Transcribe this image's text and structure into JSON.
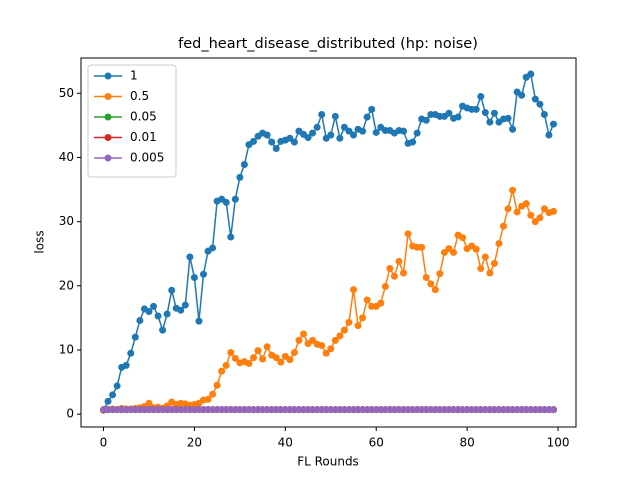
{
  "chart_data": {
    "type": "line",
    "title": "fed_heart_disease_distributed (hp: noise)",
    "x_label": "FL Rounds",
    "y_label": "loss",
    "x": [
      0,
      1,
      2,
      3,
      4,
      5,
      6,
      7,
      8,
      9,
      10,
      11,
      12,
      13,
      14,
      15,
      16,
      17,
      18,
      19,
      20,
      21,
      22,
      23,
      24,
      25,
      26,
      27,
      28,
      29,
      30,
      31,
      32,
      33,
      34,
      35,
      36,
      37,
      38,
      39,
      40,
      41,
      42,
      43,
      44,
      45,
      46,
      47,
      48,
      49,
      50,
      51,
      52,
      53,
      54,
      55,
      56,
      57,
      58,
      59,
      60,
      61,
      62,
      63,
      64,
      65,
      66,
      67,
      68,
      69,
      70,
      71,
      72,
      73,
      74,
      75,
      76,
      77,
      78,
      79,
      80,
      81,
      82,
      83,
      84,
      85,
      86,
      87,
      88,
      89,
      90,
      91,
      92,
      93,
      94,
      95,
      96,
      97,
      98,
      99
    ],
    "series": [
      {
        "name": "1",
        "color": "#1f77b4",
        "values": [
          0.6,
          2.0,
          3.0,
          4.4,
          7.3,
          7.6,
          9.5,
          12.0,
          14.6,
          16.4,
          16.0,
          16.8,
          15.3,
          13.1,
          15.6,
          19.3,
          16.5,
          16.2,
          17.0,
          24.5,
          21.3,
          14.5,
          21.8,
          25.4,
          25.9,
          33.2,
          33.5,
          33.0,
          27.6,
          33.5,
          36.9,
          38.9,
          42.0,
          42.5,
          43.3,
          43.8,
          43.5,
          42.4,
          41.4,
          42.5,
          42.7,
          43.0,
          42.4,
          44.1,
          43.6,
          43.1,
          43.8,
          44.7,
          46.7,
          43.0,
          43.5,
          46.4,
          43.0,
          44.7,
          44.1,
          43.5,
          44.4,
          44.1,
          46.3,
          47.5,
          43.9,
          44.7,
          44.2,
          44.2,
          43.8,
          44.2,
          44.1,
          42.2,
          42.4,
          43.8,
          46.0,
          45.8,
          46.7,
          46.7,
          46.4,
          46.4,
          46.9,
          46.1,
          46.3,
          48.0,
          47.7,
          47.5,
          47.5,
          49.5,
          47.0,
          45.5,
          46.9,
          45.5,
          46.0,
          46.1,
          44.4,
          50.2,
          49.7,
          52.5,
          53.0,
          49.1,
          48.3,
          46.7,
          43.5,
          45.2
        ]
      },
      {
        "name": "0.5",
        "color": "#ff7f0e",
        "values": [
          0.6,
          0.7,
          0.8,
          0.7,
          0.9,
          0.8,
          0.8,
          0.9,
          1.0,
          1.2,
          1.7,
          1.0,
          1.1,
          0.9,
          1.3,
          1.9,
          1.5,
          1.7,
          1.6,
          1.4,
          1.5,
          1.7,
          2.2,
          2.3,
          3.1,
          4.5,
          6.7,
          7.6,
          9.6,
          8.7,
          8.0,
          8.2,
          7.9,
          8.8,
          9.9,
          8.6,
          10.5,
          9.2,
          8.8,
          8.1,
          9.0,
          8.5,
          9.6,
          11.5,
          12.5,
          11.0,
          11.5,
          10.9,
          10.7,
          9.5,
          10.2,
          11.5,
          12.2,
          13.1,
          14.3,
          19.4,
          13.8,
          15.0,
          17.8,
          16.8,
          16.8,
          17.3,
          19.9,
          22.7,
          21.5,
          23.8,
          22.0,
          28.1,
          26.2,
          26.0,
          26.0,
          21.3,
          20.3,
          19.4,
          21.9,
          25.2,
          25.8,
          25.2,
          27.9,
          27.5,
          25.8,
          26.2,
          25.7,
          22.7,
          24.5,
          22.0,
          23.5,
          26.6,
          29.3,
          32.0,
          34.9,
          31.5,
          32.4,
          32.8,
          31.0,
          30.0,
          30.6,
          32.0,
          31.4,
          31.6
        ]
      },
      {
        "name": "0.05",
        "color": "#2ca02c",
        "values": [
          0.7,
          0.7,
          0.7,
          0.7,
          0.7,
          0.7,
          0.7,
          0.7,
          0.7,
          0.7,
          0.7,
          0.7,
          0.7,
          0.7,
          0.7,
          0.7,
          0.7,
          0.7,
          0.7,
          0.7,
          0.7,
          0.7,
          0.7,
          0.7,
          0.7,
          0.7,
          0.7,
          0.7,
          0.7,
          0.7,
          0.7,
          0.7,
          0.7,
          0.7,
          0.7,
          0.7,
          0.7,
          0.7,
          0.7,
          0.7,
          0.7,
          0.7,
          0.7,
          0.7,
          0.7,
          0.7,
          0.7,
          0.7,
          0.7,
          0.7,
          0.7,
          0.7,
          0.7,
          0.7,
          0.7,
          0.7,
          0.7,
          0.7,
          0.7,
          0.7,
          0.7,
          0.7,
          0.7,
          0.7,
          0.7,
          0.7,
          0.7,
          0.7,
          0.7,
          0.7,
          0.7,
          0.7,
          0.7,
          0.7,
          0.7,
          0.7,
          0.7,
          0.7,
          0.7,
          0.7,
          0.7,
          0.7,
          0.7,
          0.7,
          0.7,
          0.7,
          0.7,
          0.7,
          0.7,
          0.7,
          0.7,
          0.7,
          0.7,
          0.7,
          0.7,
          0.7,
          0.7,
          0.7,
          0.7,
          0.7
        ]
      },
      {
        "name": "0.01",
        "color": "#d62728",
        "values": [
          0.7,
          0.7,
          0.7,
          0.7,
          0.7,
          0.7,
          0.7,
          0.7,
          0.7,
          0.7,
          0.7,
          0.7,
          0.7,
          0.7,
          0.7,
          0.7,
          0.7,
          0.7,
          0.7,
          0.7,
          0.7,
          0.7,
          0.7,
          0.7,
          0.7,
          0.7,
          0.7,
          0.7,
          0.7,
          0.7,
          0.7,
          0.7,
          0.7,
          0.7,
          0.7,
          0.7,
          0.7,
          0.7,
          0.7,
          0.7,
          0.7,
          0.7,
          0.7,
          0.7,
          0.7,
          0.7,
          0.7,
          0.7,
          0.7,
          0.7,
          0.7,
          0.7,
          0.7,
          0.7,
          0.7,
          0.7,
          0.7,
          0.7,
          0.7,
          0.7,
          0.7,
          0.7,
          0.7,
          0.7,
          0.7,
          0.7,
          0.7,
          0.7,
          0.7,
          0.7,
          0.7,
          0.7,
          0.7,
          0.7,
          0.7,
          0.7,
          0.7,
          0.7,
          0.7,
          0.7,
          0.7,
          0.7,
          0.7,
          0.7,
          0.7,
          0.7,
          0.7,
          0.7,
          0.7,
          0.7,
          0.7,
          0.7,
          0.7,
          0.7,
          0.7,
          0.7,
          0.7,
          0.7,
          0.7,
          0.7
        ]
      },
      {
        "name": "0.005",
        "color": "#9467bd",
        "values": [
          0.7,
          0.7,
          0.7,
          0.7,
          0.7,
          0.7,
          0.7,
          0.7,
          0.7,
          0.7,
          0.7,
          0.7,
          0.7,
          0.7,
          0.7,
          0.7,
          0.7,
          0.7,
          0.7,
          0.7,
          0.7,
          0.7,
          0.7,
          0.7,
          0.7,
          0.7,
          0.7,
          0.7,
          0.7,
          0.7,
          0.7,
          0.7,
          0.7,
          0.7,
          0.7,
          0.7,
          0.7,
          0.7,
          0.7,
          0.7,
          0.7,
          0.7,
          0.7,
          0.7,
          0.7,
          0.7,
          0.7,
          0.7,
          0.7,
          0.7,
          0.7,
          0.7,
          0.7,
          0.7,
          0.7,
          0.7,
          0.7,
          0.7,
          0.7,
          0.7,
          0.7,
          0.7,
          0.7,
          0.7,
          0.7,
          0.7,
          0.7,
          0.7,
          0.7,
          0.7,
          0.7,
          0.7,
          0.7,
          0.7,
          0.7,
          0.7,
          0.7,
          0.7,
          0.7,
          0.7,
          0.7,
          0.7,
          0.7,
          0.7,
          0.7,
          0.7,
          0.7,
          0.7,
          0.7,
          0.7,
          0.7,
          0.7,
          0.7,
          0.7,
          0.7,
          0.7,
          0.7,
          0.7,
          0.7,
          0.7
        ]
      }
    ],
    "xlim": [
      -4.95,
      103.95
    ],
    "xticks": [
      0,
      20,
      40,
      60,
      80,
      100
    ],
    "ylim": [
      -2,
      55.5
    ],
    "yticks": [
      0,
      10,
      20,
      30,
      40,
      50
    ],
    "legend": "upper left"
  }
}
